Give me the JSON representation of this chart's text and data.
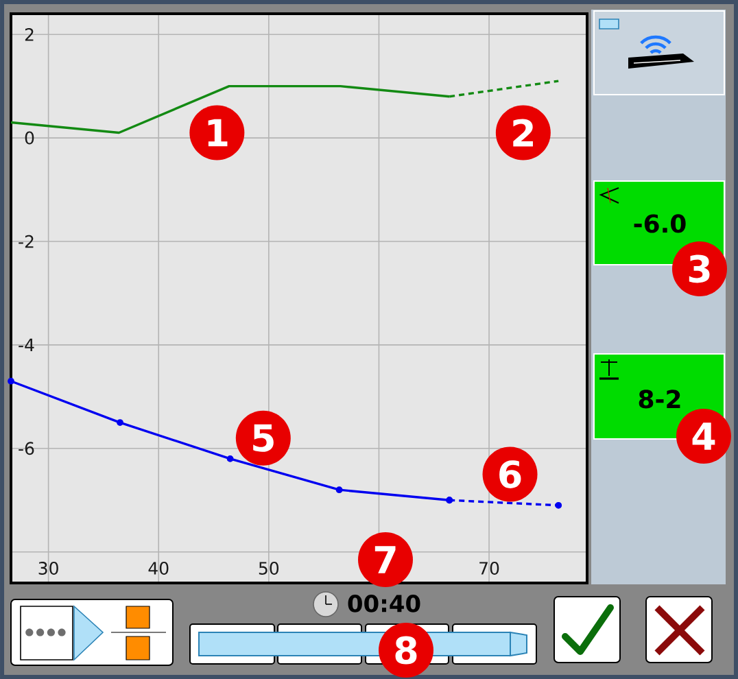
{
  "chart_data": {
    "type": "line",
    "xlim": [
      26.6,
      78.9
    ],
    "ylim": [
      -8.6,
      2.4
    ],
    "xticks": [
      30,
      40,
      50,
      {
        "value": 60,
        "label": null
      },
      70
    ],
    "yticks": [
      {
        "value": -8,
        "label": null
      },
      -6,
      -4,
      -2,
      0,
      2
    ],
    "grid": true,
    "series": [
      {
        "color": "#138a13",
        "x": [
          26.6,
          36.4,
          46.4,
          56.5,
          66.4
        ],
        "values": [
          0.3,
          0.1,
          1.0,
          1.0,
          0.8
        ],
        "line_style": "solid",
        "marker": "none"
      },
      {
        "color": "#138a13",
        "x": [
          66.4,
          76.3
        ],
        "values": [
          0.8,
          1.1
        ],
        "line_style": "dashed",
        "marker": "none"
      },
      {
        "color": "#0000f0",
        "x": [
          26.6,
          36.5,
          46.5,
          56.4,
          66.4
        ],
        "values": [
          -4.7,
          -5.5,
          -6.2,
          -6.8,
          -7.0
        ],
        "line_style": "solid",
        "marker": "circle"
      },
      {
        "color": "#0000f0",
        "x": [
          66.4,
          76.3
        ],
        "values": [
          -7.0,
          -7.1
        ],
        "line_style": "dashed",
        "marker": "circle"
      }
    ],
    "annotations": [
      {
        "text": "1",
        "x": 45.3,
        "y": 0.1
      },
      {
        "text": "2",
        "x": 73.1,
        "y": 0.1
      },
      "3",
      "4",
      {
        "text": "5",
        "x": 49.5,
        "y": -5.8
      },
      {
        "text": "6",
        "x": 71.9,
        "y": -6.5
      },
      "7",
      "8",
      "-6.0",
      "8-2",
      "00:40"
    ]
  }
}
